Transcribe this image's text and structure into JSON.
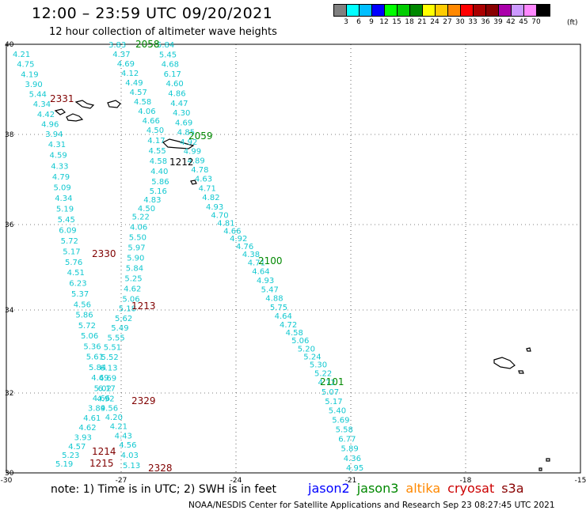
{
  "header": {
    "title": "12:00 – 23:59 UTC 09/20/2021",
    "subtitle": "12 hour collection of altimeter wave heights"
  },
  "legend": {
    "colors": [
      "#808080",
      "#00ffff",
      "#00bfff",
      "#0000ff",
      "#00ff00",
      "#00cc00",
      "#008800",
      "#ffff00",
      "#ffcc00",
      "#ff8800",
      "#ff0000",
      "#aa0000",
      "#880000",
      "#aa00aa",
      "#cc99ff",
      "#ff88ff",
      "#000000"
    ],
    "labels": [
      "3",
      "6",
      "9",
      "12",
      "15",
      "18",
      "21",
      "24",
      "27",
      "30",
      "33",
      "36",
      "39",
      "42",
      "45",
      "70"
    ],
    "unit": "(ft)"
  },
  "axes": {
    "lon_ticks": [
      "-30",
      "-27",
      "-24",
      "-21",
      "-18",
      "-15"
    ],
    "lat_ticks": [
      "40",
      "38",
      "36",
      "34",
      "32",
      "30"
    ]
  },
  "passes": [
    {
      "label": "2331",
      "color": "#800000"
    },
    {
      "label": "2330",
      "color": "#800000"
    },
    {
      "label": "2329",
      "color": "#800000"
    },
    {
      "label": "2328",
      "color": "#800000"
    },
    {
      "label": "1215",
      "color": "#800000"
    },
    {
      "label": "1214",
      "color": "#800000"
    },
    {
      "label": "1213",
      "color": "#800000"
    },
    {
      "label": "1212",
      "color": "#000000"
    },
    {
      "label": "2058",
      "color": "#008800"
    },
    {
      "label": "2059",
      "color": "#008800"
    },
    {
      "label": "2100",
      "color": "#008800"
    },
    {
      "label": "2101",
      "color": "#008800"
    }
  ],
  "tracks": [
    {
      "name": "track-a",
      "values": [
        "4.21",
        "4.75",
        "4.19",
        "3.90",
        "5.44",
        "4.34",
        "4.42",
        "4.96",
        "3.94",
        "4.31",
        "4.59",
        "4.33",
        "4.79",
        "5.09",
        "4.34",
        "5.19",
        "5.45",
        "6.09",
        "5.72",
        "5.17",
        "5.76",
        "4.51",
        "6.23",
        "5.37",
        "4.56",
        "5.86",
        "5.72",
        "5.06",
        "5.36",
        "5.61",
        "5.84",
        "4.69",
        "5.02",
        "4.66",
        "3.89",
        "4.61",
        "4.62",
        "3.93",
        "4.57",
        "5.23",
        "5.19"
      ]
    },
    {
      "name": "track-b",
      "values": [
        "3.83",
        "4.37",
        "4.69",
        "4.12",
        "4.49",
        "4.57",
        "4.58",
        "4.06",
        "4.66",
        "4.50",
        "4.17",
        "4.55",
        "4.58",
        "4.40",
        "5.86",
        "5.16",
        "4.83",
        "4.50",
        "5.22",
        "4.06",
        "5.50",
        "5.97",
        "5.90",
        "5.84",
        "5.25",
        "4.62",
        "5.06",
        "5.18",
        "5.62",
        "5.49",
        "5.55",
        "5.51",
        "5.52",
        "6.13",
        "4.69",
        "6.17",
        "4.92",
        "4.56",
        "4.20",
        "4.21",
        "4.43",
        "4.56",
        "4.03",
        "5.13"
      ]
    },
    {
      "name": "track-c",
      "values": [
        "5.84",
        "5.45",
        "4.68",
        "6.17",
        "4.60",
        "4.86",
        "4.47",
        "4.30",
        "4.69",
        "4.85",
        "4.92",
        "4.99",
        "4.89",
        "4.78",
        "4.63",
        "4.71",
        "4.82",
        "4.93",
        "4.70",
        "4.81",
        "4.66",
        "4.92",
        "4.76",
        "4.38",
        "4.71",
        "4.64",
        "4.93",
        "5.47",
        "4.88",
        "5.75",
        "4.64",
        "4.72",
        "4.58",
        "5.06",
        "5.20",
        "5.24",
        "5.30",
        "5.22",
        "4.72",
        "5.07",
        "5.17",
        "5.40",
        "5.69",
        "5.58",
        "6.77",
        "5.89",
        "4.36",
        "4.95"
      ]
    }
  ],
  "note": "note: 1) Time is in UTC; 2) SWH is in feet",
  "satellites": [
    {
      "name": "jason2",
      "color": "#0000ff"
    },
    {
      "name": "jason3",
      "color": "#008800"
    },
    {
      "name": "altika",
      "color": "#ff8800"
    },
    {
      "name": "cryosat",
      "color": "#cc0000"
    },
    {
      "name": "s3a",
      "color": "#880000"
    }
  ],
  "credit": "NOAA/NESDIS Center for Satellite Applications and Research    Sep 23 08:27:45 UTC 2021"
}
